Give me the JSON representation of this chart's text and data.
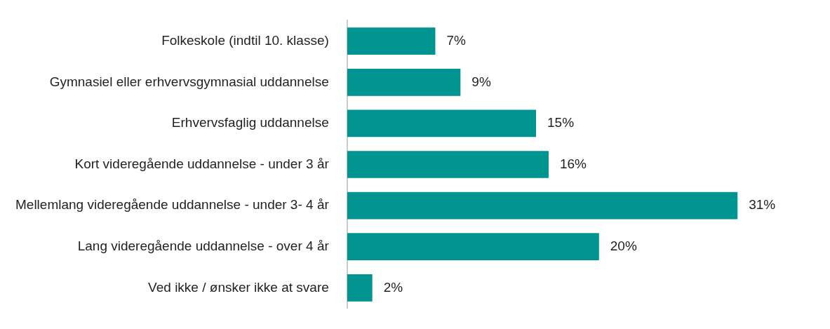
{
  "chart_data": {
    "type": "bar",
    "orientation": "horizontal",
    "categories": [
      "Folkeskole (indtil 10. klasse)",
      "Gymnasiel eller erhvervsgymnasial uddannelse",
      "Erhvervsfaglig uddannelse",
      "Kort videregående uddannelse - under 3 år",
      "Mellemlang videregående uddannelse - under 3- 4 år",
      "Lang videregående uddannelse - over 4 år",
      "Ved ikke / ønsker ikke at svare"
    ],
    "values": [
      7,
      9,
      15,
      16,
      31,
      20,
      2
    ],
    "value_labels": [
      "7%",
      "9%",
      "15%",
      "16%",
      "31%",
      "20%",
      "2%"
    ],
    "color": "#009490"
  }
}
